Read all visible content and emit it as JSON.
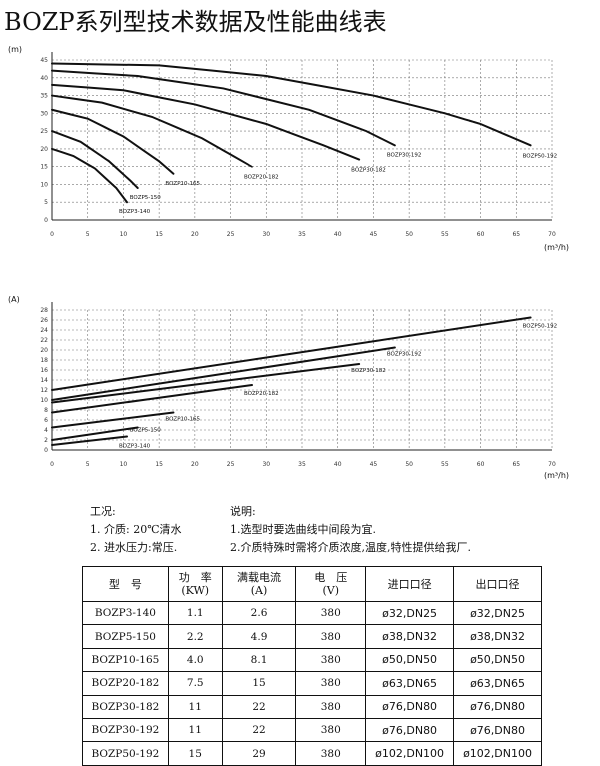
{
  "title": "BOZP系列型技术数据及性能曲线表",
  "chart_data": [
    {
      "type": "line",
      "ylabel": "(m)",
      "xlabel": "(m³/h)",
      "xlim": [
        0,
        70
      ],
      "ylim": [
        0,
        45
      ],
      "x_ticks": [
        "0",
        "5",
        "10",
        "15",
        "20",
        "25",
        "30",
        "35",
        "40",
        "45",
        "50",
        "55",
        "60",
        "65",
        "70"
      ],
      "y_ticks": [
        "0",
        "5",
        "10",
        "15",
        "20",
        "25",
        "30",
        "35",
        "40",
        "45"
      ],
      "series": [
        {
          "name": "BOZP3-140",
          "x": [
            0,
            3,
            6,
            9,
            10.5
          ],
          "y": [
            20,
            18,
            14.5,
            9,
            5
          ]
        },
        {
          "name": "BOZP5-150",
          "x": [
            0,
            4,
            8,
            11,
            12
          ],
          "y": [
            25,
            22,
            16.5,
            11,
            9
          ]
        },
        {
          "name": "BOZP10-165",
          "x": [
            0,
            5,
            10,
            15,
            17
          ],
          "y": [
            31,
            28.5,
            23.5,
            16.5,
            13
          ]
        },
        {
          "name": "BOZP20-182",
          "x": [
            0,
            7,
            14,
            21,
            28
          ],
          "y": [
            35,
            33,
            29,
            23,
            15
          ]
        },
        {
          "name": "BOZP30-182",
          "x": [
            0,
            10,
            20,
            30,
            38,
            43
          ],
          "y": [
            38,
            36.5,
            32.5,
            27,
            21,
            17
          ]
        },
        {
          "name": "BOZP30-192",
          "x": [
            0,
            12,
            24,
            36,
            44,
            48
          ],
          "y": [
            42,
            40.5,
            37,
            31,
            25,
            21
          ]
        },
        {
          "name": "BOZP50-192",
          "x": [
            0,
            15,
            30,
            45,
            55,
            60,
            67
          ],
          "y": [
            44,
            43.5,
            40.5,
            35,
            30,
            27,
            21
          ]
        }
      ]
    },
    {
      "type": "line",
      "ylabel": "(A)",
      "xlabel": "(m³/h)",
      "xlim": [
        0,
        70
      ],
      "ylim": [
        0,
        28
      ],
      "x_ticks": [
        "0",
        "5",
        "10",
        "15",
        "20",
        "25",
        "30",
        "35",
        "40",
        "45",
        "50",
        "55",
        "60",
        "65",
        "70"
      ],
      "y_ticks": [
        "0",
        "2",
        "4",
        "6",
        "8",
        "10",
        "12",
        "14",
        "16",
        "18",
        "20",
        "22",
        "24",
        "26",
        "28"
      ],
      "series": [
        {
          "name": "BOZP3-140",
          "x": [
            0,
            10.5
          ],
          "y": [
            1,
            2.7
          ]
        },
        {
          "name": "BOZP5-150",
          "x": [
            0,
            12
          ],
          "y": [
            2,
            4.5
          ]
        },
        {
          "name": "BOZP10-165",
          "x": [
            0,
            17
          ],
          "y": [
            4.5,
            7.5
          ]
        },
        {
          "name": "BOZP20-182",
          "x": [
            0,
            28
          ],
          "y": [
            7.5,
            13
          ]
        },
        {
          "name": "BOZP30-182",
          "x": [
            0,
            43
          ],
          "y": [
            9.5,
            17.2
          ]
        },
        {
          "name": "BOZP30-192",
          "x": [
            0,
            48
          ],
          "y": [
            10,
            20.5
          ]
        },
        {
          "name": "BOZP50-192",
          "x": [
            0,
            67
          ],
          "y": [
            12,
            26.5
          ]
        }
      ]
    }
  ],
  "conditions": {
    "heading": "工况:",
    "items": [
      "1. 介质: 20℃清水",
      "2. 进水压力:常压."
    ]
  },
  "remarks": {
    "heading": "说明:",
    "items": [
      "1.选型时要选曲线中间段为宜.",
      "2.介质特殊时需将介质浓度,温度,特性提供给我厂."
    ]
  },
  "table": {
    "headers": [
      {
        "line1": "型　号",
        "line2": ""
      },
      {
        "line1": "功　率",
        "line2": "(KW)"
      },
      {
        "line1": "满载电流",
        "line2": "(A)"
      },
      {
        "line1": "电　压",
        "line2": "(V)"
      },
      {
        "line1": "进口口径",
        "line2": ""
      },
      {
        "line1": "出口口径",
        "line2": ""
      }
    ],
    "rows": [
      {
        "model": "BOZP3-140",
        "power": "1.1",
        "current": "2.6",
        "voltage": "380",
        "inlet": "ø32,DN25",
        "outlet": "ø32,DN25"
      },
      {
        "model": "BOZP5-150",
        "power": "2.2",
        "current": "4.9",
        "voltage": "380",
        "inlet": "ø38,DN32",
        "outlet": "ø38,DN32"
      },
      {
        "model": "BOZP10-165",
        "power": "4.0",
        "current": "8.1",
        "voltage": "380",
        "inlet": "ø50,DN50",
        "outlet": "ø50,DN50"
      },
      {
        "model": "BOZP20-182",
        "power": "7.5",
        "current": "15",
        "voltage": "380",
        "inlet": "ø63,DN65",
        "outlet": "ø63,DN65"
      },
      {
        "model": "BOZP30-182",
        "power": "11",
        "current": "22",
        "voltage": "380",
        "inlet": "ø76,DN80",
        "outlet": "ø76,DN80"
      },
      {
        "model": "BOZP30-192",
        "power": "11",
        "current": "22",
        "voltage": "380",
        "inlet": "ø76,DN80",
        "outlet": "ø76,DN80"
      },
      {
        "model": "BOZP50-192",
        "power": "15",
        "current": "29",
        "voltage": "380",
        "inlet": "ø102,DN100",
        "outlet": "ø102,DN100"
      }
    ]
  }
}
